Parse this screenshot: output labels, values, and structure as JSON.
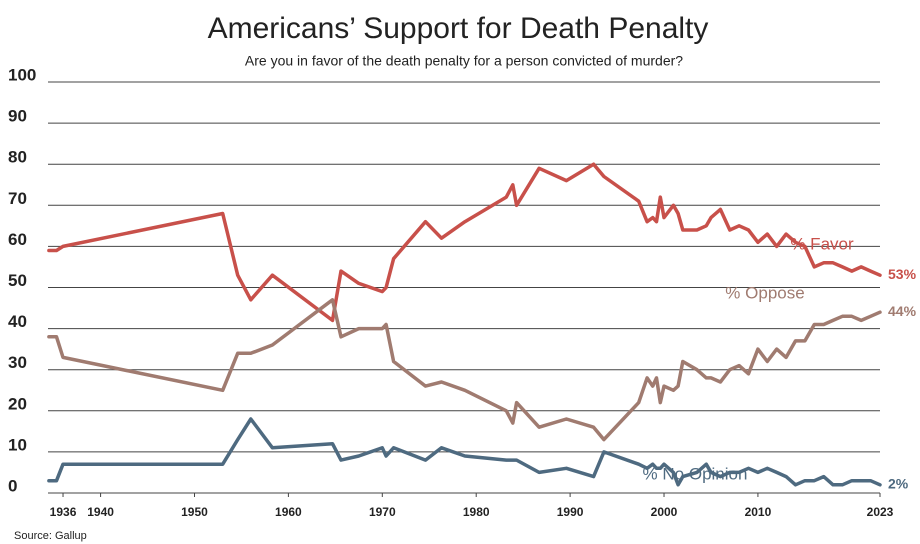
{
  "chart_data": {
    "type": "line",
    "title": "Americans’ Support for Death Penalty",
    "subtitle": "Are you in favor of the death penalty for a person convicted of murder?",
    "source": "Source: Gallup",
    "x": [
      1934.5,
      1935.3,
      1936,
      1953,
      1954.6,
      1956,
      1958.3,
      1964.7,
      1965.6,
      1967.5,
      1970,
      1970.4,
      1971.2,
      1974.6,
      1976.3,
      1978.8,
      1983.2,
      1983.9,
      1984.3,
      1986.7,
      1989.6,
      1992.5,
      1993.6,
      1997.3,
      1998.2,
      1998.8,
      1999.2,
      1999.6,
      2000,
      2001,
      2001.5,
      2002,
      2003.5,
      2004.5,
      2005,
      2006,
      2007,
      2008,
      2009,
      2010,
      2011,
      2012,
      2013,
      2014,
      2015,
      2016,
      2017,
      2018,
      2019,
      2020,
      2021,
      2022,
      2023
    ],
    "series": [
      {
        "name": "% Favor",
        "color": "#c8504a",
        "values": [
          59,
          59,
          60,
          68,
          53,
          47,
          53,
          42,
          54,
          51,
          49,
          50,
          57,
          66,
          62,
          66,
          72,
          75,
          70,
          79,
          76,
          80,
          77,
          71,
          66,
          67,
          66,
          72,
          67,
          70,
          68,
          64,
          64,
          65,
          67,
          69,
          64,
          65,
          64,
          61,
          63,
          60,
          63,
          61,
          60,
          55,
          56,
          56,
          55,
          54,
          55,
          54,
          53
        ],
        "value_labels": [
          null,
          null,
          null,
          null,
          null,
          null,
          null,
          null,
          null,
          null,
          null,
          null,
          null,
          null,
          null,
          null,
          null,
          null,
          null,
          null,
          null,
          null,
          null,
          null,
          null,
          null,
          null,
          null,
          null,
          null,
          null,
          null,
          null,
          null,
          null,
          null,
          null,
          null,
          null,
          null,
          null,
          null,
          null,
          null,
          null,
          null,
          null,
          null,
          null,
          null,
          null,
          null,
          "53%"
        ]
      },
      {
        "name": "% Oppose",
        "color": "#a07b70",
        "values": [
          38,
          38,
          33,
          25,
          34,
          34,
          36,
          47,
          38,
          40,
          40,
          41,
          32,
          26,
          27,
          25,
          20,
          17,
          22,
          16,
          18,
          16,
          13,
          22,
          28,
          26,
          28,
          22,
          26,
          25,
          26,
          32,
          30,
          28,
          28,
          27,
          30,
          31,
          29,
          35,
          32,
          35,
          33,
          37,
          37,
          41,
          41,
          42,
          43,
          43,
          42,
          43,
          44
        ],
        "value_labels": [
          null,
          null,
          null,
          null,
          null,
          null,
          null,
          null,
          null,
          null,
          null,
          null,
          null,
          null,
          null,
          null,
          null,
          null,
          null,
          null,
          null,
          null,
          null,
          null,
          null,
          null,
          null,
          null,
          null,
          null,
          null,
          null,
          null,
          null,
          null,
          null,
          null,
          null,
          null,
          null,
          null,
          null,
          null,
          null,
          null,
          null,
          null,
          null,
          null,
          null,
          null,
          null,
          "44%"
        ]
      },
      {
        "name": "% No Opinion",
        "color": "#4e6a80",
        "values": [
          3,
          3,
          7,
          7,
          13,
          18,
          11,
          12,
          8,
          9,
          11,
          9,
          11,
          8,
          11,
          9,
          8,
          8,
          8,
          5,
          6,
          4,
          10,
          7,
          6,
          7,
          6,
          6,
          7,
          5,
          2,
          4,
          5,
          7,
          5,
          4,
          5,
          5,
          6,
          5,
          6,
          5,
          4,
          2,
          3,
          3,
          4,
          2,
          2,
          3,
          3,
          3,
          2
        ],
        "value_labels": [
          null,
          null,
          null,
          null,
          null,
          null,
          null,
          null,
          null,
          null,
          null,
          null,
          null,
          null,
          null,
          null,
          null,
          null,
          null,
          null,
          null,
          null,
          null,
          null,
          null,
          null,
          null,
          null,
          null,
          null,
          null,
          null,
          null,
          null,
          null,
          null,
          null,
          null,
          null,
          null,
          null,
          null,
          null,
          null,
          null,
          null,
          null,
          null,
          null,
          null,
          null,
          null,
          "2%"
        ]
      }
    ],
    "xlim": [
      1934.4,
      2023
    ],
    "xticks": [
      1936,
      1940,
      1950,
      1960,
      1970,
      1980,
      1990,
      2000,
      2010,
      2023
    ],
    "ylim": [
      0,
      100
    ],
    "yticks": [
      0,
      10,
      20,
      30,
      40,
      50,
      60,
      70,
      80,
      90,
      100
    ],
    "grid": true
  }
}
